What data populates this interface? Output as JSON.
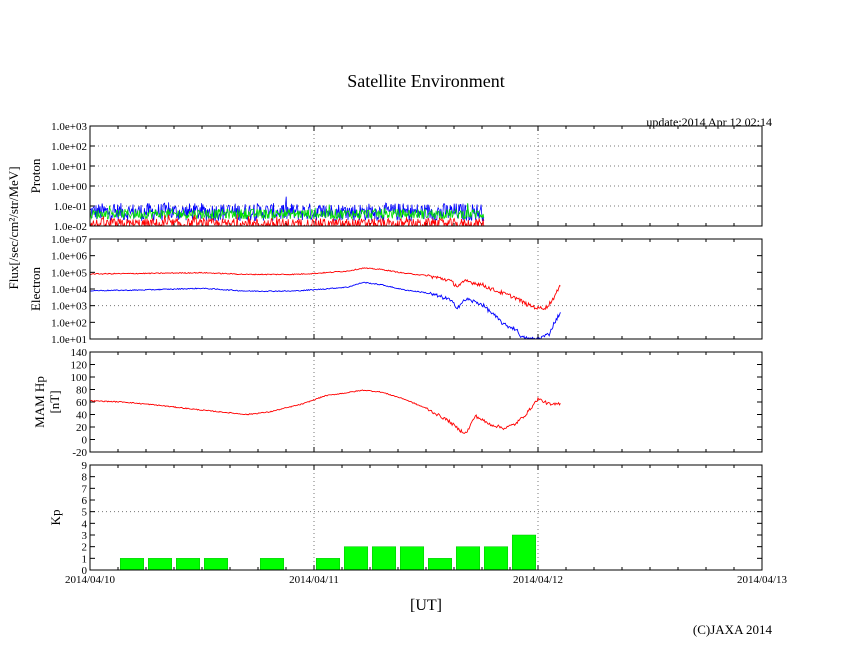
{
  "title": "Satellite Environment",
  "update": "update:2014 Apr 12 02:14",
  "copyright": "(C)JAXA 2014",
  "xlabel": "[UT]",
  "x_ticks": [
    "2014/04/10",
    "2014/04/11",
    "2014/04/12",
    "2014/04/13"
  ],
  "flux_label": "Flux[/sec/cm²/str/MeV]",
  "chart_data": [
    {
      "type": "line",
      "title": "Proton",
      "ylabel": "Proton",
      "yscale": "log",
      "ylim": [
        0.01,
        1000
      ],
      "y_ticks": [
        "1.0e-02",
        "1.0e-01",
        "1.0e+00",
        "1.0e+01",
        "1.0e+02",
        "1.0e+03"
      ],
      "x_range_days": [
        0,
        3
      ],
      "data_end_day": 1.76,
      "series": [
        {
          "name": "proton-blue",
          "color": "#0000ff",
          "level": 0.05,
          "noise_decades": 0.45
        },
        {
          "name": "proton-green",
          "color": "#00e000",
          "level": 0.04,
          "noise_decades": 0.25
        },
        {
          "name": "proton-red",
          "color": "#ff0000",
          "level": 0.012,
          "noise_decades": 0.3
        }
      ]
    },
    {
      "type": "line",
      "title": "Electron",
      "ylabel": "Electron",
      "yscale": "log",
      "ylim": [
        10,
        10000000
      ],
      "y_ticks": [
        "1.0e+01",
        "1.0e+02",
        "1.0e+03",
        "1.0e+04",
        "1.0e+05",
        "1.0e+06",
        "1.0e+07"
      ],
      "x_range_days": [
        0,
        3
      ],
      "series": [
        {
          "name": "electron-red",
          "color": "#ff0000",
          "points": [
            [
              0,
              80000
            ],
            [
              0.2,
              85000
            ],
            [
              0.5,
              95000
            ],
            [
              0.7,
              75000
            ],
            [
              0.9,
              75000
            ],
            [
              1.0,
              85000
            ],
            [
              1.15,
              120000
            ],
            [
              1.22,
              180000
            ],
            [
              1.3,
              150000
            ],
            [
              1.4,
              90000
            ],
            [
              1.5,
              65000
            ],
            [
              1.6,
              35000
            ],
            [
              1.64,
              15000
            ],
            [
              1.68,
              30000
            ],
            [
              1.75,
              18000
            ],
            [
              1.8,
              9000
            ],
            [
              1.9,
              3000
            ],
            [
              1.95,
              1200
            ],
            [
              2.0,
              700
            ],
            [
              2.04,
              800
            ],
            [
              2.07,
              3000
            ],
            [
              2.1,
              15000
            ]
          ]
        },
        {
          "name": "electron-blue",
          "color": "#0000ff",
          "points": [
            [
              0,
              8000
            ],
            [
              0.2,
              8500
            ],
            [
              0.5,
              11000
            ],
            [
              0.7,
              7500
            ],
            [
              0.9,
              7500
            ],
            [
              1.0,
              9000
            ],
            [
              1.15,
              13000
            ],
            [
              1.22,
              25000
            ],
            [
              1.3,
              18000
            ],
            [
              1.4,
              9000
            ],
            [
              1.5,
              6000
            ],
            [
              1.6,
              2500
            ],
            [
              1.64,
              800
            ],
            [
              1.68,
              2500
            ],
            [
              1.75,
              1200
            ],
            [
              1.8,
              300
            ],
            [
              1.85,
              70
            ],
            [
              1.9,
              40
            ],
            [
              1.93,
              12
            ],
            [
              1.96,
              10
            ],
            [
              2.0,
              10
            ],
            [
              2.05,
              20
            ],
            [
              2.07,
              80
            ],
            [
              2.1,
              400
            ]
          ]
        }
      ]
    },
    {
      "type": "line",
      "title": "MAM Hp",
      "ylabel": "MAM Hp",
      "yunit": "[nT]",
      "ylim": [
        -20,
        140
      ],
      "y_ticks": [
        "-20",
        "0",
        "20",
        "40",
        "60",
        "80",
        "100",
        "120",
        "140"
      ],
      "x_range_days": [
        0,
        3
      ],
      "series": [
        {
          "name": "mam-hp",
          "color": "#ff0000",
          "points": [
            [
              0,
              62
            ],
            [
              0.15,
              60
            ],
            [
              0.3,
              55
            ],
            [
              0.5,
              47
            ],
            [
              0.7,
              40
            ],
            [
              0.8,
              44
            ],
            [
              0.95,
              57
            ],
            [
              1.05,
              70
            ],
            [
              1.15,
              75
            ],
            [
              1.22,
              79
            ],
            [
              1.3,
              76
            ],
            [
              1.4,
              65
            ],
            [
              1.5,
              50
            ],
            [
              1.6,
              30
            ],
            [
              1.65,
              15
            ],
            [
              1.68,
              10
            ],
            [
              1.72,
              38
            ],
            [
              1.78,
              25
            ],
            [
              1.85,
              18
            ],
            [
              1.9,
              25
            ],
            [
              1.95,
              42
            ],
            [
              2.0,
              65
            ],
            [
              2.03,
              60
            ],
            [
              2.06,
              55
            ],
            [
              2.1,
              58
            ]
          ]
        }
      ]
    },
    {
      "type": "bar",
      "title": "Kp",
      "ylabel": "Kp",
      "ylim": [
        0,
        9
      ],
      "y_ticks": [
        "0",
        "1",
        "2",
        "3",
        "4",
        "5",
        "6",
        "7",
        "8",
        "9"
      ],
      "x_range_days": [
        0,
        3
      ],
      "bar_width_days": 0.125,
      "categories": [
        "2014/04/10 00-03",
        "2014/04/10 03-06",
        "2014/04/10 06-09",
        "2014/04/10 09-12",
        "2014/04/10 12-15",
        "2014/04/10 15-18",
        "2014/04/10 18-21",
        "2014/04/10 21-24",
        "2014/04/11 00-03",
        "2014/04/11 03-06",
        "2014/04/11 06-09",
        "2014/04/11 09-12",
        "2014/04/11 12-15",
        "2014/04/11 15-18",
        "2014/04/11 18-21",
        "2014/04/11 21-24"
      ],
      "values": [
        0,
        1,
        1,
        1,
        1,
        0,
        1,
        0,
        1,
        2,
        2,
        2,
        1,
        2,
        2,
        3
      ],
      "bar_color": "#00ff00"
    }
  ]
}
